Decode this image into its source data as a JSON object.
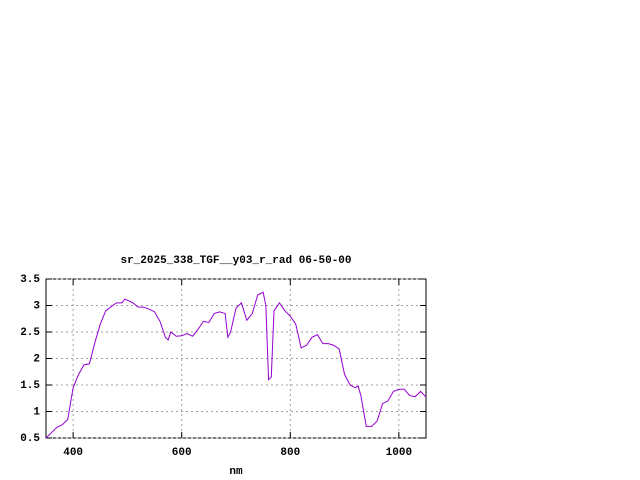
{
  "chart_data": {
    "type": "line",
    "title": "sr_2025_338_TGF__y03_r_rad 06-50-00",
    "x_label": "nm",
    "x": [
      350,
      360,
      370,
      380,
      390,
      400,
      410,
      420,
      430,
      440,
      450,
      460,
      470,
      480,
      490,
      495,
      500,
      510,
      520,
      530,
      540,
      550,
      560,
      570,
      575,
      580,
      590,
      600,
      610,
      620,
      630,
      640,
      650,
      660,
      670,
      680,
      685,
      690,
      700,
      710,
      720,
      730,
      740,
      750,
      755,
      760,
      765,
      770,
      780,
      790,
      800,
      810,
      820,
      830,
      840,
      850,
      860,
      870,
      880,
      890,
      900,
      910,
      920,
      925,
      930,
      940,
      950,
      960,
      970,
      980,
      990,
      1000,
      1010,
      1020,
      1030,
      1040,
      1050
    ],
    "series": [
      {
        "name": "rad",
        "color": "#9400d3",
        "values": [
          0.5,
          0.6,
          0.7,
          0.75,
          0.85,
          1.45,
          1.7,
          1.88,
          1.9,
          2.3,
          2.65,
          2.9,
          2.98,
          3.05,
          3.05,
          3.12,
          3.1,
          3.05,
          2.97,
          2.97,
          2.93,
          2.88,
          2.7,
          2.4,
          2.35,
          2.5,
          2.42,
          2.43,
          2.47,
          2.42,
          2.55,
          2.7,
          2.68,
          2.85,
          2.88,
          2.85,
          2.4,
          2.5,
          2.95,
          3.05,
          2.72,
          2.85,
          3.2,
          3.25,
          3.0,
          1.6,
          1.65,
          2.9,
          3.05,
          2.9,
          2.8,
          2.65,
          2.2,
          2.25,
          2.4,
          2.45,
          2.28,
          2.28,
          2.25,
          2.18,
          1.7,
          1.5,
          1.45,
          1.48,
          1.3,
          0.72,
          0.72,
          0.82,
          1.15,
          1.2,
          1.38,
          1.42,
          1.42,
          1.3,
          1.28,
          1.38,
          1.27
        ]
      }
    ],
    "xlim": [
      350,
      1050
    ],
    "ylim": [
      0.5,
      3.5
    ],
    "xticks": [
      400,
      600,
      800,
      1000
    ],
    "yticks": [
      0.5,
      1,
      1.5,
      2,
      2.5,
      3,
      3.5
    ],
    "grid": true
  }
}
